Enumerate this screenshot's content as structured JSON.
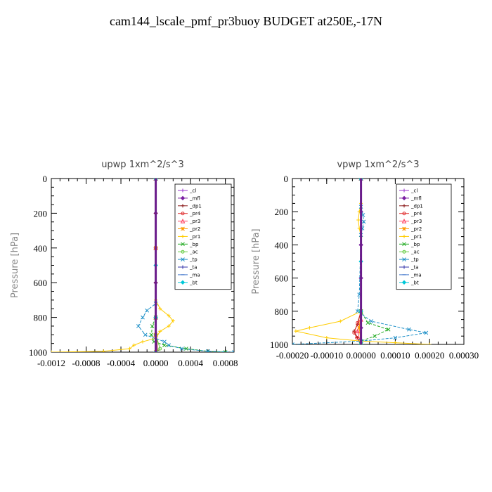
{
  "title": "cam144_lscale_pmf_pr3buoy  BUDGET at250E,-17N",
  "chart_data": [
    {
      "type": "line",
      "title": "upwp   1xm^2/s^3",
      "ylabel": "Pressure [hPa]",
      "xlabel": "",
      "xlim": [
        -0.0012,
        0.0009
      ],
      "ylim": [
        1000,
        0
      ],
      "x_tick_labels": [
        "-0.0012",
        "-0.0008",
        "-0.0004",
        "0.0000",
        "0.0004",
        "0.0008"
      ],
      "y_tick_labels": [
        "0",
        "200",
        "400",
        "600",
        "800",
        "1000"
      ],
      "legend": "top-right",
      "series": [
        {
          "name": "_cl",
          "color": "#9933cc",
          "marker": "+",
          "points": [
            [
              0,
              0
            ],
            [
              0,
              200
            ],
            [
              0,
              400
            ],
            [
              0,
              600
            ],
            [
              0,
              800
            ],
            [
              0,
              900
            ],
            [
              0,
              1000
            ]
          ]
        },
        {
          "name": "_mfl",
          "color": "#7a1fa2",
          "marker": "diamond",
          "points": [
            [
              0,
              0
            ],
            [
              0,
              200
            ],
            [
              0,
              400
            ],
            [
              0,
              600
            ],
            [
              0,
              800
            ],
            [
              0,
              900
            ],
            [
              0,
              1000
            ]
          ]
        },
        {
          "name": "_dp1",
          "color": "#8b1a1a",
          "marker": "+",
          "points": [
            [
              0,
              0
            ],
            [
              0,
              200
            ],
            [
              0,
              400
            ],
            [
              0,
              600
            ],
            [
              0,
              800
            ],
            [
              1e-05,
              900
            ],
            [
              2e-05,
              990
            ],
            [
              0,
              1000
            ]
          ]
        },
        {
          "name": "_pr4",
          "color": "#e03030",
          "marker": "circle",
          "points": [
            [
              0,
              0
            ],
            [
              0,
              400
            ],
            [
              0,
              800
            ],
            [
              0,
              900
            ],
            [
              0,
              1000
            ]
          ]
        },
        {
          "name": "_pr3",
          "color": "#ff4060",
          "marker": "triangle",
          "points": [
            [
              0,
              0
            ],
            [
              0,
              400
            ],
            [
              0,
              800
            ],
            [
              0,
              900
            ],
            [
              0,
              1000
            ]
          ]
        },
        {
          "name": "_pr2",
          "color": "#ff9900",
          "marker": "star",
          "points": [
            [
              0,
              0
            ],
            [
              0,
              400
            ],
            [
              0,
              800
            ],
            [
              0,
              900
            ],
            [
              0,
              1000
            ]
          ]
        },
        {
          "name": "_pr1",
          "color": "#ffcc00",
          "marker": "+",
          "points": [
            [
              0,
              0
            ],
            [
              0,
              700
            ],
            [
              5e-05,
              750
            ],
            [
              0.00015,
              790
            ],
            [
              0.0002,
              820
            ],
            [
              0.00015,
              850
            ],
            [
              5e-05,
              880
            ],
            [
              0,
              920
            ],
            [
              -0.00015,
              940
            ],
            [
              -0.00025,
              960
            ],
            [
              -0.0003,
              980
            ],
            [
              -0.0006,
              995
            ],
            [
              -0.0012,
              1000
            ]
          ]
        },
        {
          "name": "_bp",
          "color": "#22aa22",
          "marker": "x",
          "points": [
            [
              0,
              0
            ],
            [
              0,
              800
            ],
            [
              -4e-05,
              850
            ],
            [
              -5e-05,
              900
            ],
            [
              -2e-05,
              940
            ],
            [
              0.0001,
              960
            ],
            [
              0.00035,
              980
            ],
            [
              0.0006,
              995
            ],
            [
              0.0008,
              1000
            ]
          ]
        },
        {
          "name": "_ac",
          "color": "#66cc44",
          "marker": "circle",
          "points": [
            [
              0,
              0
            ],
            [
              0,
              800
            ],
            [
              0,
              900
            ],
            [
              5e-05,
              980
            ],
            [
              0,
              1000
            ]
          ]
        },
        {
          "name": "_tp",
          "color": "#1e90c8",
          "marker": "x",
          "points": [
            [
              0,
              0
            ],
            [
              0,
              720
            ],
            [
              -0.0001,
              760
            ],
            [
              -0.00015,
              800
            ],
            [
              -0.0002,
              850
            ],
            [
              -0.00012,
              900
            ],
            [
              0.0001,
              940
            ],
            [
              0.00015,
              960
            ],
            [
              0.0003,
              980
            ],
            [
              0.0006,
              995
            ],
            [
              0.0009,
              1000
            ]
          ]
        },
        {
          "name": "_ta",
          "color": "#3333aa",
          "marker": "+",
          "points": [
            [
              0,
              0
            ],
            [
              0,
              500
            ],
            [
              0,
              800
            ],
            [
              0,
              1000
            ]
          ]
        },
        {
          "name": "_ma",
          "color": "#4477cc",
          "marker": "dash",
          "points": [
            [
              0,
              0
            ],
            [
              0,
              500
            ],
            [
              0,
              800
            ],
            [
              0,
              1000
            ]
          ]
        },
        {
          "name": "_bt",
          "color": "#00c8d8",
          "marker": "diamond",
          "points": [
            [
              0,
              0
            ],
            [
              0,
              500
            ],
            [
              0,
              800
            ],
            [
              0,
              1000
            ]
          ]
        }
      ]
    },
    {
      "type": "line",
      "title": "vpwp   1xm^2/s^3",
      "ylabel": "Pressure [hPa]",
      "xlabel": "",
      "xlim": [
        -0.0002,
        0.0003
      ],
      "ylim": [
        1000,
        0
      ],
      "x_tick_labels": [
        "-0.00020",
        "-0.00010",
        "0.00000",
        "0.00010",
        "0.00020",
        "0.00030"
      ],
      "y_tick_labels": [
        "0",
        "200",
        "400",
        "600",
        "800",
        "1000"
      ],
      "legend": "top-right",
      "series": [
        {
          "name": "_cl",
          "color": "#9933cc",
          "marker": "+",
          "points": [
            [
              0,
              0
            ],
            [
              0,
              200
            ],
            [
              0,
              400
            ],
            [
              0,
              600
            ],
            [
              0,
              800
            ],
            [
              0,
              900
            ],
            [
              0,
              1000
            ]
          ]
        },
        {
          "name": "_mfl",
          "color": "#7a1fa2",
          "marker": "diamond",
          "points": [
            [
              0,
              0
            ],
            [
              0,
              200
            ],
            [
              0,
              400
            ],
            [
              0,
              600
            ],
            [
              0,
              800
            ],
            [
              0,
              900
            ],
            [
              0,
              1000
            ]
          ]
        },
        {
          "name": "_dp1",
          "color": "#8b1a1a",
          "marker": "+",
          "points": [
            [
              0,
              0
            ],
            [
              0,
              800
            ],
            [
              -1e-05,
              880
            ],
            [
              -2e-05,
              920
            ],
            [
              -1e-05,
              960
            ],
            [
              0,
              1000
            ]
          ]
        },
        {
          "name": "_pr4",
          "color": "#e03030",
          "marker": "circle",
          "points": [
            [
              0,
              0
            ],
            [
              0,
              800
            ],
            [
              -1e-05,
              870
            ],
            [
              -2e-05,
              930
            ],
            [
              -1.2e-05,
              960
            ],
            [
              0,
              1000
            ]
          ]
        },
        {
          "name": "_pr3",
          "color": "#ff4060",
          "marker": "triangle",
          "points": [
            [
              0,
              0
            ],
            [
              0,
              850
            ],
            [
              -1e-05,
              920
            ],
            [
              0,
              1000
            ]
          ]
        },
        {
          "name": "_pr2",
          "color": "#ff9900",
          "marker": "star",
          "points": [
            [
              0,
              0
            ],
            [
              0,
              800
            ],
            [
              -5e-06,
              900
            ],
            [
              0,
              1000
            ]
          ]
        },
        {
          "name": "_pr1",
          "color": "#ffcc00",
          "marker": "+",
          "points": [
            [
              0,
              0
            ],
            [
              0,
              150
            ],
            [
              -5e-06,
              200
            ],
            [
              -8e-06,
              250
            ],
            [
              -5e-06,
              300
            ],
            [
              0,
              350
            ],
            [
              0,
              800
            ],
            [
              -6e-05,
              860
            ],
            [
              -0.00015,
              900
            ],
            [
              -0.00019,
              920
            ],
            [
              -0.0001,
              960
            ],
            [
              0,
              980
            ],
            [
              0.0001,
              990
            ],
            [
              0.0002,
              1000
            ]
          ]
        },
        {
          "name": "_bp",
          "color": "#22aa22",
          "marker": "x",
          "points": [
            [
              0,
              0
            ],
            [
              0,
              800
            ],
            [
              2e-05,
              870
            ],
            [
              8e-05,
              910
            ],
            [
              4e-05,
              950
            ],
            [
              0,
              980
            ],
            [
              0,
              1000
            ]
          ]
        },
        {
          "name": "_ac",
          "color": "#66cc44",
          "marker": "circle",
          "points": [
            [
              0,
              0
            ],
            [
              0,
              800
            ],
            [
              0,
              1000
            ]
          ]
        },
        {
          "name": "_tp",
          "color": "#1e90c8",
          "marker": "x",
          "points": [
            [
              0,
              0
            ],
            [
              0,
              170
            ],
            [
              6e-06,
              220
            ],
            [
              8e-06,
              260
            ],
            [
              4e-06,
              300
            ],
            [
              0,
              340
            ],
            [
              -5e-06,
              700
            ],
            [
              -1e-05,
              800
            ],
            [
              3e-05,
              860
            ],
            [
              0.00014,
              910
            ],
            [
              0.00019,
              930
            ],
            [
              0.0001,
              960
            ],
            [
              0,
              980
            ],
            [
              -0.0002,
              1000
            ]
          ]
        },
        {
          "name": "_ta",
          "color": "#3333aa",
          "marker": "+",
          "points": [
            [
              0,
              0
            ],
            [
              0,
              500
            ],
            [
              0,
              800
            ],
            [
              0,
              1000
            ]
          ]
        },
        {
          "name": "_ma",
          "color": "#4477cc",
          "marker": "dash",
          "points": [
            [
              0,
              0
            ],
            [
              0,
              500
            ],
            [
              0,
              800
            ],
            [
              0,
              1000
            ]
          ]
        },
        {
          "name": "_bt",
          "color": "#00c8d8",
          "marker": "diamond",
          "points": [
            [
              0,
              0
            ],
            [
              0,
              500
            ],
            [
              0,
              800
            ],
            [
              0,
              1000
            ]
          ]
        }
      ]
    }
  ]
}
